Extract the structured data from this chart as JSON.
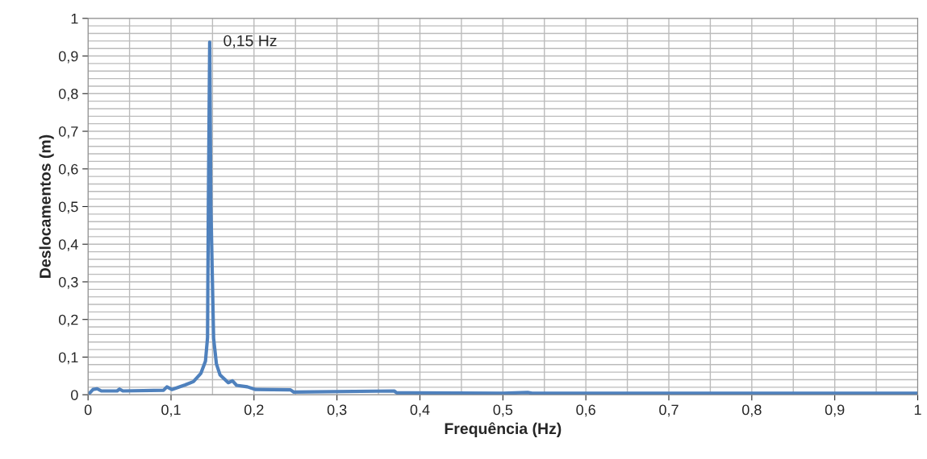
{
  "chart_data": {
    "type": "line",
    "xlabel": "Frequência (Hz)",
    "ylabel": "Deslocamentos (m)",
    "x": [
      0,
      0.006,
      0.011,
      0.016,
      0.035,
      0.038,
      0.042,
      0.091,
      0.095,
      0.101,
      0.117,
      0.127,
      0.136,
      0.1415,
      0.144,
      0.145,
      0.1466,
      0.148,
      0.1513,
      0.1547,
      0.159,
      0.169,
      0.174,
      0.179,
      0.192,
      0.202,
      0.244,
      0.248,
      0.369,
      0.372,
      0.5,
      0.53,
      0.535,
      0.7,
      1.0
    ],
    "series": [
      {
        "color": "#4f81bd",
        "values": [
          0,
          0.014,
          0.016,
          0.01,
          0.01,
          0.015,
          0.01,
          0.012,
          0.021,
          0.014,
          0.026,
          0.035,
          0.057,
          0.089,
          0.152,
          0.5,
          0.937,
          0.5,
          0.15,
          0.082,
          0.053,
          0.032,
          0.037,
          0.025,
          0.021,
          0.014,
          0.013,
          0.007,
          0.01,
          0.005,
          0.004,
          0.006,
          0.004,
          0.004,
          0.004
        ]
      }
    ],
    "annotations": [
      {
        "text": "0,15 Hz",
        "x": 0.1466,
        "y": 0.937
      }
    ],
    "xlim": [
      0,
      1
    ],
    "ylim": [
      0,
      1
    ],
    "xticks": [
      {
        "value": 0,
        "label": "0"
      },
      {
        "value": 0.1,
        "label": "0,1"
      },
      {
        "value": 0.2,
        "label": "0,2"
      },
      {
        "value": 0.3,
        "label": "0,3"
      },
      {
        "value": 0.4,
        "label": "0,4"
      },
      {
        "value": 0.5,
        "label": "0,5"
      },
      {
        "value": 0.6,
        "label": "0,6"
      },
      {
        "value": 0.7,
        "label": "0,7"
      },
      {
        "value": 0.8,
        "label": "0,8"
      },
      {
        "value": 0.9,
        "label": "0,9"
      },
      {
        "value": 1,
        "label": "1"
      }
    ],
    "yticks": [
      {
        "value": 0,
        "label": "0"
      },
      {
        "value": 0.1,
        "label": "0,1"
      },
      {
        "value": 0.2,
        "label": "0,2"
      },
      {
        "value": 0.3,
        "label": "0,3"
      },
      {
        "value": 0.4,
        "label": "0,4"
      },
      {
        "value": 0.5,
        "label": "0,5"
      },
      {
        "value": 0.6,
        "label": "0,6"
      },
      {
        "value": 0.7,
        "label": "0,7"
      },
      {
        "value": 0.8,
        "label": "0,8"
      },
      {
        "value": 0.9,
        "label": "0,9"
      },
      {
        "value": 1,
        "label": "1"
      }
    ],
    "grid": true,
    "marker": "none",
    "line_style": "solid"
  }
}
